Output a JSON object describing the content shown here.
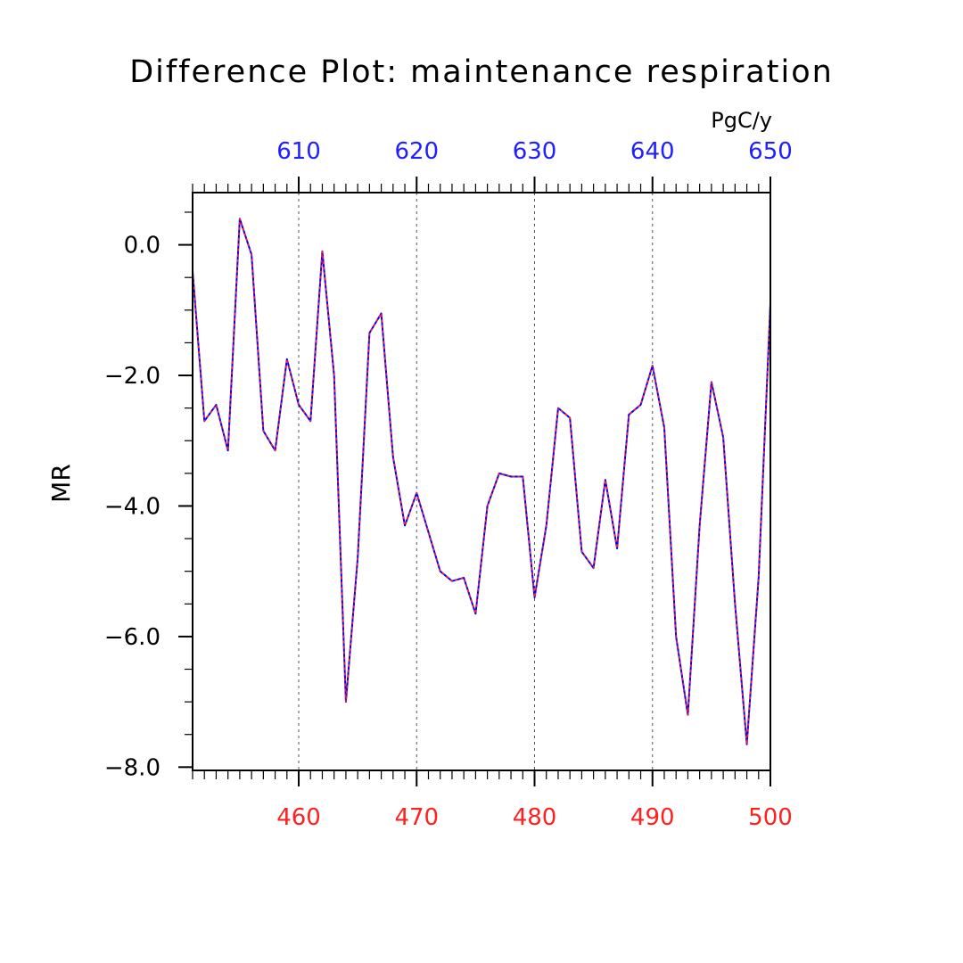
{
  "chart_data": {
    "type": "line",
    "title": "Difference Plot: maintenance respiration",
    "units": "PgC/y",
    "ylabel": "MR",
    "ylim": [
      -8.05,
      0.8
    ],
    "yticks": [
      0.0,
      -2.0,
      -4.0,
      -6.0,
      -8.0
    ],
    "ytick_labels": [
      "0.0",
      "−2.0",
      "−4.0",
      "−6.0",
      "−8.0"
    ],
    "x_bottom": {
      "range": [
        451,
        500
      ],
      "ticks": [
        460,
        470,
        480,
        490,
        500
      ],
      "color": "#ff2020"
    },
    "x_top": {
      "range": [
        601,
        650
      ],
      "ticks": [
        610,
        620,
        630,
        640,
        650
      ],
      "color": "#2020ff"
    },
    "grid": "vertical dashed at major x ticks",
    "x": [
      451,
      452,
      453,
      454,
      455,
      456,
      457,
      458,
      459,
      460,
      461,
      462,
      463,
      464,
      465,
      466,
      467,
      468,
      469,
      470,
      471,
      472,
      473,
      474,
      475,
      476,
      477,
      478,
      479,
      480,
      481,
      482,
      483,
      484,
      485,
      486,
      487,
      488,
      489,
      490,
      491,
      492,
      493,
      494,
      495,
      496,
      497,
      498,
      499,
      500
    ],
    "series": [
      {
        "color": "#0000ff",
        "style": "solid",
        "values": [
          -0.4,
          -2.7,
          -2.45,
          -3.15,
          0.4,
          -0.15,
          -2.85,
          -3.15,
          -1.75,
          -2.45,
          -2.7,
          -0.1,
          -2.0,
          -7.0,
          -4.8,
          -1.35,
          -1.05,
          -3.25,
          -4.3,
          -3.8,
          -4.4,
          -5.0,
          -5.15,
          -5.1,
          -5.65,
          -4.0,
          -3.5,
          -3.55,
          -3.55,
          -5.4,
          -4.3,
          -2.5,
          -2.65,
          -4.7,
          -4.95,
          -3.6,
          -4.65,
          -2.6,
          -2.45,
          -1.85,
          -2.8,
          -6.0,
          -7.2,
          -4.3,
          -2.1,
          -2.95,
          -5.5,
          -7.65,
          -5.1,
          -0.9
        ]
      },
      {
        "color": "#ff2020",
        "style": "dashed",
        "values": [
          -0.4,
          -2.7,
          -2.45,
          -3.15,
          0.4,
          -0.15,
          -2.85,
          -3.15,
          -1.75,
          -2.45,
          -2.7,
          -0.1,
          -2.0,
          -7.0,
          -4.8,
          -1.35,
          -1.05,
          -3.25,
          -4.3,
          -3.8,
          -4.4,
          -5.0,
          -5.15,
          -5.1,
          -5.65,
          -4.0,
          -3.5,
          -3.55,
          -3.55,
          -5.4,
          -4.3,
          -2.5,
          -2.65,
          -4.7,
          -4.95,
          -3.6,
          -4.65,
          -2.6,
          -2.45,
          -1.85,
          -2.8,
          -6.0,
          -7.2,
          -4.3,
          -2.1,
          -2.95,
          -5.5,
          -7.65,
          -5.1,
          -0.9
        ]
      }
    ]
  }
}
